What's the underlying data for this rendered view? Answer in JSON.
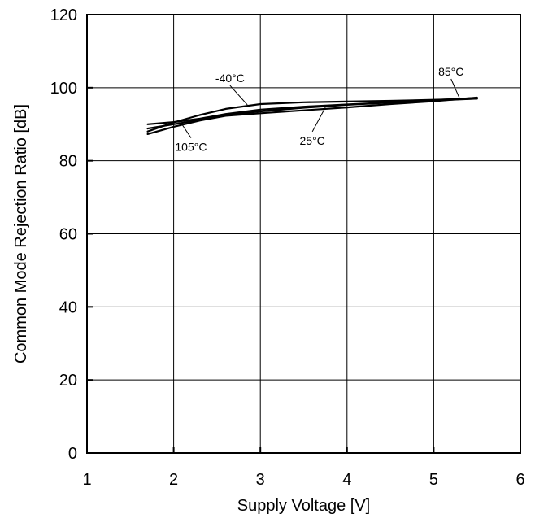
{
  "chart_data": {
    "type": "line",
    "title": "",
    "xlabel": "Supply Voltage [V]",
    "ylabel": "Common Mode Rejection Ratio [dB]",
    "xlim": [
      1,
      6
    ],
    "ylim": [
      0,
      120
    ],
    "x_ticks": [
      "1",
      "2",
      "3",
      "4",
      "5",
      "6"
    ],
    "y_ticks": [
      "0",
      "20",
      "40",
      "60",
      "80",
      "100",
      "120"
    ],
    "grid": true,
    "legend": "none",
    "series": [
      {
        "name": "-40°C",
        "x": [
          1.7,
          2.0,
          2.3,
          2.6,
          3.0,
          3.5,
          4.0,
          4.5,
          5.0,
          5.5
        ],
        "y": [
          88.0,
          90.5,
          92.5,
          94.2,
          95.5,
          96.0,
          96.2,
          96.4,
          96.7,
          97.0
        ]
      },
      {
        "name": "25°C",
        "x": [
          1.7,
          2.0,
          2.3,
          2.6,
          3.0,
          3.5,
          4.0,
          4.5,
          5.0,
          5.5
        ],
        "y": [
          88.8,
          90.0,
          91.2,
          92.5,
          93.5,
          94.5,
          95.3,
          95.9,
          96.5,
          97.0
        ]
      },
      {
        "name": "85°C",
        "x": [
          1.7,
          2.0,
          2.3,
          2.6,
          3.0,
          3.5,
          4.0,
          4.5,
          5.0,
          5.5
        ],
        "y": [
          87.3,
          89.3,
          91.0,
          92.3,
          93.0,
          93.8,
          94.6,
          95.5,
          96.3,
          97.3
        ]
      },
      {
        "name": "105°C",
        "x": [
          1.7,
          2.0,
          2.3,
          2.6,
          3.0,
          3.5,
          4.0,
          4.5,
          5.0,
          5.5
        ],
        "y": [
          90.0,
          90.6,
          91.5,
          92.8,
          94.0,
          94.8,
          95.4,
          96.0,
          96.6,
          97.2
        ]
      }
    ],
    "annotations": [
      {
        "text": "-40°C",
        "x": 2.65,
        "y": 101.5,
        "leader_to": [
          2.85,
          95.3
        ]
      },
      {
        "text": "85°C",
        "x": 5.2,
        "y": 103.3,
        "leader_to": [
          5.3,
          97.0
        ]
      },
      {
        "text": "25°C",
        "x": 3.6,
        "y": 84.4,
        "leader_to": [
          3.75,
          94.6
        ]
      },
      {
        "text": "105°C",
        "x": 2.2,
        "y": 82.7,
        "leader_to": [
          2.1,
          89.8
        ]
      }
    ]
  }
}
